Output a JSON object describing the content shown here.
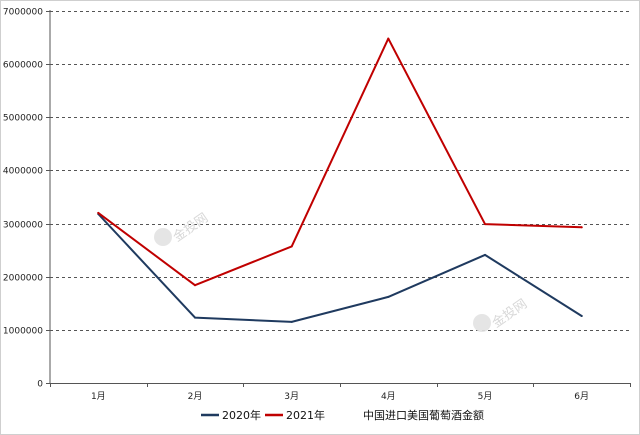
{
  "chart_data": {
    "type": "line",
    "categories": [
      "1月",
      "2月",
      "3月",
      "4月",
      "5月",
      "6月"
    ],
    "series": [
      {
        "name": "2020年",
        "color": "#1f3a5f",
        "values": [
          3180000,
          1230000,
          1150000,
          1620000,
          2410000,
          1260000
        ]
      },
      {
        "name": "2021年",
        "color": "#c00000",
        "values": [
          3200000,
          1840000,
          2570000,
          6480000,
          2990000,
          2930000
        ]
      }
    ],
    "yticks": [
      "0",
      "1000000",
      "2000000",
      "3000000",
      "4000000",
      "5000000",
      "6000000",
      "7000000"
    ],
    "ylim": [
      0,
      7000000
    ],
    "grid": "horizontal-dashed",
    "legend_position": "bottom",
    "caption": "中国进口美国葡萄酒金额",
    "watermark": "金投网"
  }
}
